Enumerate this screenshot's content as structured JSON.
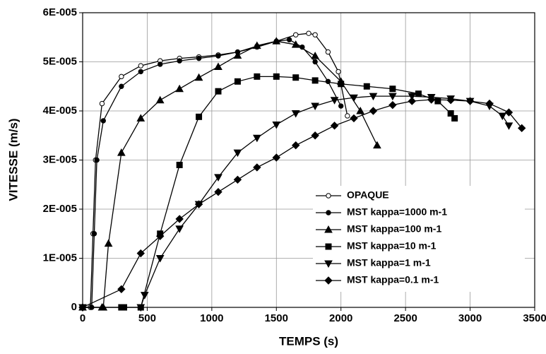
{
  "chart_data": {
    "type": "line",
    "xlabel": "TEMPS (s)",
    "ylabel": "VITESSE (m/s)",
    "xlim": [
      0,
      3500
    ],
    "xticks": [
      0,
      500,
      1000,
      1500,
      2000,
      2500,
      3000,
      3500
    ],
    "ylim": [
      0,
      6e-05
    ],
    "yticks": [
      0,
      {
        "value": 1e-05,
        "label": "1E-005"
      },
      {
        "value": 2e-05,
        "label": "2E-005"
      },
      {
        "value": 3e-05,
        "label": "3E-005"
      },
      {
        "value": 4e-05,
        "label": "4E-005"
      },
      {
        "value": 5e-05,
        "label": "5E-005"
      },
      {
        "value": 6e-05,
        "label": "6E-005"
      }
    ],
    "grid": true,
    "legend": "lower right",
    "series": [
      {
        "name": "OPAQUE",
        "color": "#000000",
        "marker": "circle-open",
        "x": [
          0,
          60,
          80,
          100,
          150,
          300,
          450,
          600,
          750,
          900,
          1050,
          1200,
          1350,
          1500,
          1650,
          1750,
          1800,
          1900,
          1980,
          2050
        ],
        "values": [
          0,
          0,
          1.5e-05,
          3e-05,
          4.15e-05,
          4.7e-05,
          4.92e-05,
          5.02e-05,
          5.07e-05,
          5.1e-05,
          5.14e-05,
          5.2e-05,
          5.3e-05,
          5.42e-05,
          5.55e-05,
          5.58e-05,
          5.55e-05,
          5.2e-05,
          4.8e-05,
          3.9e-05
        ]
      },
      {
        "name": "MST kappa=1000 m-1",
        "color": "#000000",
        "marker": "circle",
        "x": [
          0,
          70,
          90,
          110,
          160,
          300,
          450,
          600,
          750,
          900,
          1050,
          1200,
          1350,
          1500,
          1600,
          1700,
          1800,
          1900,
          2000
        ],
        "values": [
          0,
          0,
          1.5e-05,
          3e-05,
          3.8e-05,
          4.5e-05,
          4.8e-05,
          4.95e-05,
          5.02e-05,
          5.07e-05,
          5.12e-05,
          5.2e-05,
          5.32e-05,
          5.42e-05,
          5.45e-05,
          5.3e-05,
          5e-05,
          4.6e-05,
          4.1e-05
        ]
      },
      {
        "name": "MST kappa=100 m-1",
        "color": "#000000",
        "marker": "triangle-up",
        "x": [
          0,
          150,
          160,
          200,
          300,
          450,
          600,
          750,
          900,
          1050,
          1200,
          1350,
          1500,
          1650,
          1800,
          2000,
          2150,
          2280
        ],
        "values": [
          0,
          0,
          0,
          1.3e-05,
          3.15e-05,
          3.85e-05,
          4.22e-05,
          4.45e-05,
          4.68e-05,
          4.9e-05,
          5.13e-05,
          5.33e-05,
          5.42e-05,
          5.35e-05,
          5.12e-05,
          4.6e-05,
          4e-05,
          3.3e-05
        ]
      },
      {
        "name": "MST kappa=10 m-1",
        "color": "#000000",
        "marker": "square",
        "x": [
          0,
          300,
          320,
          450,
          600,
          750,
          900,
          1050,
          1200,
          1350,
          1500,
          1650,
          1800,
          2000,
          2200,
          2400,
          2600,
          2750,
          2850,
          2880
        ],
        "values": [
          0,
          0,
          0,
          0,
          1.5e-05,
          2.9e-05,
          3.88e-05,
          4.4e-05,
          4.6e-05,
          4.7e-05,
          4.7e-05,
          4.68e-05,
          4.62e-05,
          4.55e-05,
          4.5e-05,
          4.45e-05,
          4.35e-05,
          4.2e-05,
          3.95e-05,
          3.85e-05
        ]
      },
      {
        "name": "MST kappa=1 m-1",
        "color": "#000000",
        "marker": "triangle-down",
        "x": [
          0,
          450,
          480,
          600,
          750,
          900,
          1050,
          1200,
          1350,
          1500,
          1650,
          1800,
          1950,
          2100,
          2250,
          2400,
          2550,
          2700,
          2850,
          3000,
          3150,
          3250,
          3300
        ],
        "values": [
          0,
          0,
          2.5e-06,
          1e-05,
          1.6e-05,
          2.1e-05,
          2.65e-05,
          3.15e-05,
          3.45e-05,
          3.72e-05,
          3.95e-05,
          4.1e-05,
          4.22e-05,
          4.27e-05,
          4.3e-05,
          4.3e-05,
          4.3e-05,
          4.28e-05,
          4.25e-05,
          4.2e-05,
          4.1e-05,
          3.9e-05,
          3.7e-05
        ]
      },
      {
        "name": "MST kappa=0.1 m-1",
        "color": "#000000",
        "marker": "diamond",
        "x": [
          0,
          300,
          450,
          600,
          750,
          900,
          1050,
          1200,
          1350,
          1500,
          1650,
          1800,
          1950,
          2100,
          2250,
          2400,
          2550,
          2700,
          2850,
          3000,
          3150,
          3300,
          3400
        ],
        "values": [
          0,
          3.7e-06,
          1.1e-05,
          1.45e-05,
          1.8e-05,
          2.1e-05,
          2.35e-05,
          2.6e-05,
          2.85e-05,
          3.05e-05,
          3.3e-05,
          3.5e-05,
          3.7e-05,
          3.85e-05,
          4e-05,
          4.12e-05,
          4.2e-05,
          4.23e-05,
          4.22e-05,
          4.2e-05,
          4.15e-05,
          3.97e-05,
          3.65e-05
        ]
      }
    ]
  }
}
